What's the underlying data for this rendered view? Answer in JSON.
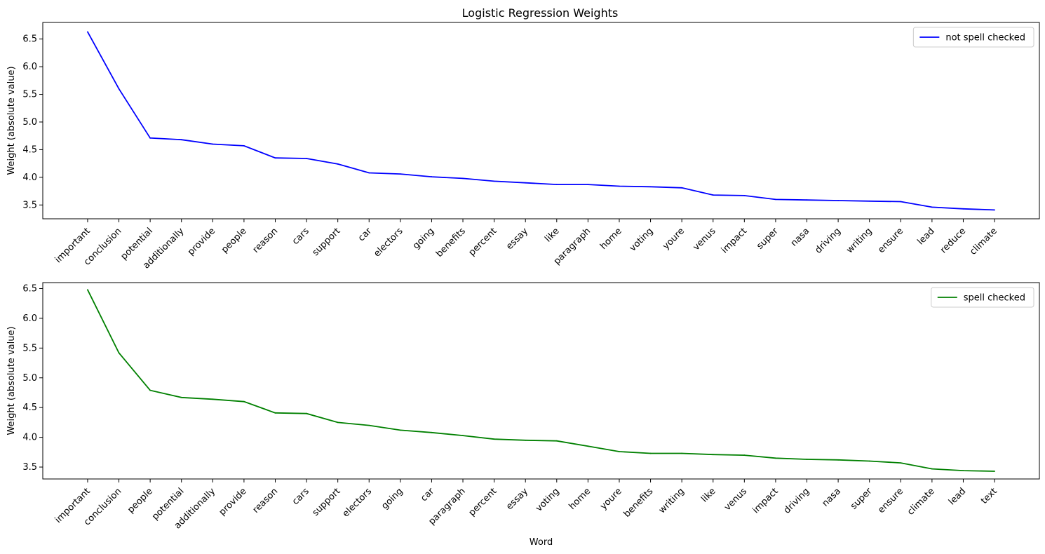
{
  "title": "Logistic Regression Weights",
  "chart_data": [
    {
      "type": "line",
      "title": "Logistic Regression Weights",
      "xlabel": "",
      "ylabel": "Weight (absolute value)",
      "ylim": [
        3.25,
        6.8
      ],
      "yticks": [
        3.5,
        4.0,
        4.5,
        5.0,
        5.5,
        6.0,
        6.5
      ],
      "legend_position": "top-right",
      "grid": false,
      "categories": [
        "important",
        "conclusion",
        "potential",
        "additionally",
        "provide",
        "people",
        "reason",
        "cars",
        "support",
        "car",
        "electors",
        "going",
        "benefits",
        "percent",
        "essay",
        "like",
        "paragraph",
        "home",
        "voting",
        "youre",
        "venus",
        "impact",
        "super",
        "nasa",
        "driving",
        "writing",
        "ensure",
        "lead",
        "reduce",
        "climate"
      ],
      "series": [
        {
          "name": "not spell checked",
          "color": "#0000ff",
          "values": [
            6.63,
            5.6,
            4.71,
            4.68,
            4.6,
            4.57,
            4.35,
            4.34,
            4.24,
            4.08,
            4.06,
            4.01,
            3.98,
            3.93,
            3.9,
            3.87,
            3.87,
            3.84,
            3.83,
            3.81,
            3.68,
            3.67,
            3.6,
            3.59,
            3.58,
            3.57,
            3.56,
            3.46,
            3.43,
            3.41
          ]
        }
      ]
    },
    {
      "type": "line",
      "title": "",
      "xlabel": "Word",
      "ylabel": "Weight (absolute value)",
      "ylim": [
        3.3,
        6.6
      ],
      "yticks": [
        3.5,
        4.0,
        4.5,
        5.0,
        5.5,
        6.0,
        6.5
      ],
      "legend_position": "top-right",
      "grid": false,
      "categories": [
        "important",
        "conclusion",
        "people",
        "potential",
        "additionally",
        "provide",
        "reason",
        "cars",
        "support",
        "electors",
        "going",
        "car",
        "paragraph",
        "percent",
        "essay",
        "voting",
        "home",
        "youre",
        "benefits",
        "writing",
        "like",
        "venus",
        "impact",
        "driving",
        "nasa",
        "super",
        "ensure",
        "climate",
        "lead",
        "text"
      ],
      "series": [
        {
          "name": "spell checked",
          "color": "#008000",
          "values": [
            6.48,
            5.42,
            4.79,
            4.67,
            4.64,
            4.6,
            4.41,
            4.4,
            4.25,
            4.2,
            4.12,
            4.08,
            4.03,
            3.97,
            3.95,
            3.94,
            3.85,
            3.76,
            3.73,
            3.73,
            3.71,
            3.7,
            3.65,
            3.63,
            3.62,
            3.6,
            3.57,
            3.47,
            3.44,
            3.43
          ]
        }
      ]
    }
  ]
}
